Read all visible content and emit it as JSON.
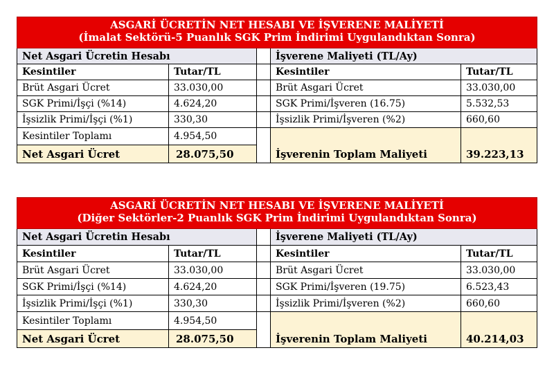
{
  "tables": [
    {
      "title_line1": "ASGARİ ÜCRETİN NET HESABI VE İŞVERENE MALİYETİ",
      "title_line2": "(İmalat Sektörü-5 Puanlık SGK Prim İndirimi Uygulandıktan Sonra)",
      "left": {
        "section": "Net Asgari Ücretin Hesabı",
        "col1": "Kesintiler",
        "col2": "Tutar/TL",
        "rows": [
          {
            "label": "Brüt Asgari Ücret",
            "value": "33.030,00"
          },
          {
            "label": "SGK Primi/İşçi (%14)",
            "value": "4.624,20"
          },
          {
            "label": "İşsizlik Primi/İşçi (%1)",
            "value": "330,30"
          },
          {
            "label": "Kesintiler Toplamı",
            "value": "4.954,50"
          }
        ],
        "total_label": "Net Asgari Ücret",
        "total_value": "28.075,50"
      },
      "right": {
        "section": "İşverene Maliyeti (TL/Ay)",
        "col1": "Kesintiler",
        "col2": "Tutar/TL",
        "rows": [
          {
            "label": "Brüt Asgari Ücret",
            "value": "33.030,00"
          },
          {
            "label": "SGK Primi/İşveren (16.75)",
            "value": "5.532,53"
          },
          {
            "label": "İşsizlik Primi/İşveren (%2)",
            "value": "660,60"
          }
        ],
        "total_label": "İşverenin Toplam Maliyeti",
        "total_value": "39.223,13"
      }
    },
    {
      "title_line1": "ASGARİ ÜCRETİN NET HESABI VE İŞVERENE MALİYETİ",
      "title_line2": "(Diğer Sektörler-2 Puanlık SGK Prim İndirimi Uygulandıktan Sonra)",
      "left": {
        "section": "Net Asgari Ücretin Hesabı",
        "col1": "Kesintiler",
        "col2": "Tutar/TL",
        "rows": [
          {
            "label": "Brüt Asgari Ücret",
            "value": "33.030,00"
          },
          {
            "label": "SGK Primi/İşçi (%14)",
            "value": "4.624,20"
          },
          {
            "label": "İşsizlik Primi/İşçi (%1)",
            "value": "330,30"
          },
          {
            "label": "Kesintiler Toplamı",
            "value": "4.954,50"
          }
        ],
        "total_label": "Net Asgari Ücret",
        "total_value": "28.075,50"
      },
      "right": {
        "section": "İşverene Maliyeti (TL/Ay)",
        "col1": "Kesintiler",
        "col2": "Tutar/TL",
        "rows": [
          {
            "label": "Brüt Asgari Ücret",
            "value": "33.030,00"
          },
          {
            "label": "SGK Primi/İşveren (19.75)",
            "value": "6.523,43"
          },
          {
            "label": "İşsizlik Primi/İşveren (%2)",
            "value": "660,60"
          }
        ],
        "total_label": "İşverenin Toplam Maliyeti",
        "total_value": "40.214,03"
      }
    }
  ]
}
